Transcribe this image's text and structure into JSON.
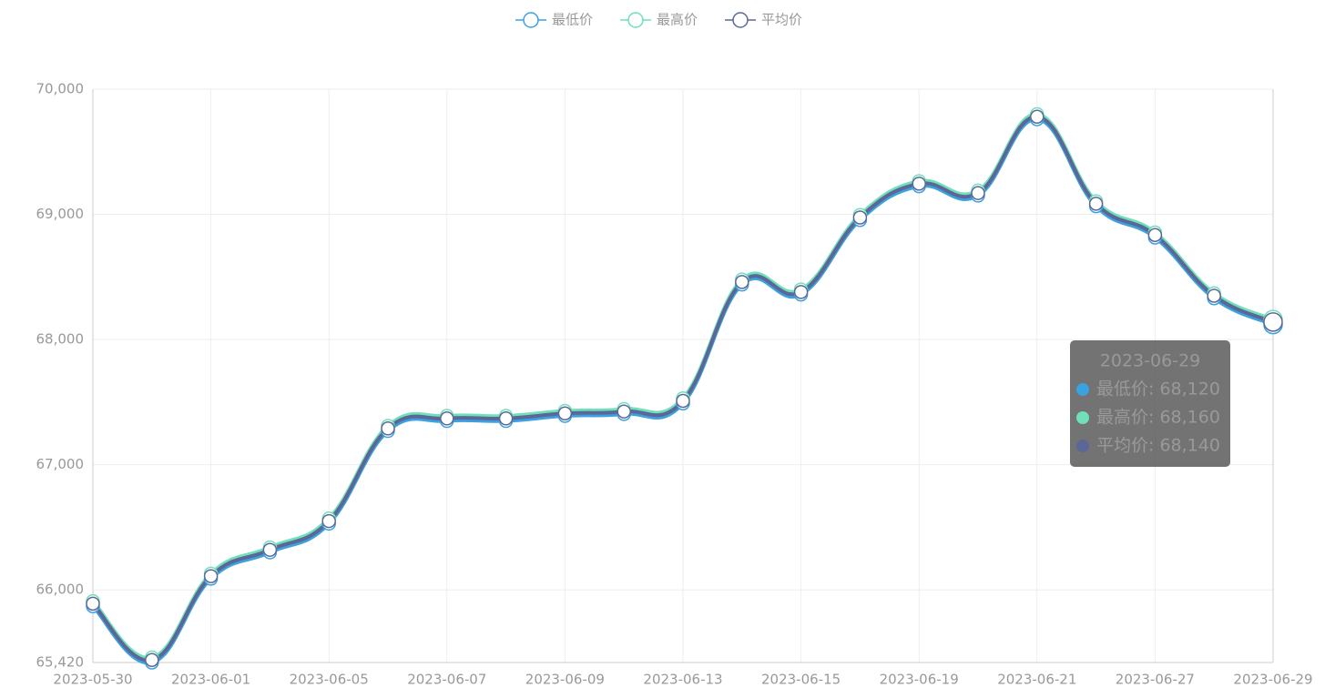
{
  "chart_data": {
    "type": "line",
    "smooth": true,
    "grid": true,
    "categories": [
      "2023-05-30",
      null,
      "2023-06-01",
      null,
      "2023-06-05",
      null,
      "2023-06-07",
      null,
      "2023-06-09",
      null,
      "2023-06-13",
      null,
      "2023-06-15",
      null,
      "2023-06-19",
      null,
      "2023-06-21",
      null,
      "2023-06-27",
      null,
      "2023-06-29"
    ],
    "series": [
      {
        "name": "最低价",
        "color": "#3ba1e0",
        "values": [
          65870,
          65420,
          66090,
          66300,
          66530,
          67270,
          67350,
          67350,
          67390,
          67405,
          67490,
          68440,
          68360,
          68955,
          69225,
          69150,
          69760,
          69065,
          68815,
          68330,
          68120
        ]
      },
      {
        "name": "最高价",
        "color": "#6fe0b9",
        "values": [
          65910,
          65460,
          66130,
          66340,
          66570,
          67310,
          67390,
          67390,
          67430,
          67445,
          67530,
          68480,
          68400,
          68995,
          69265,
          69190,
          69800,
          69105,
          68855,
          68370,
          68160
        ]
      },
      {
        "name": "平均价",
        "color": "#5b6796",
        "values": [
          65890,
          65440,
          66110,
          66320,
          66550,
          67290,
          67370,
          67370,
          67410,
          67425,
          67510,
          68460,
          68380,
          68975,
          69245,
          69170,
          69780,
          69085,
          68835,
          68350,
          68140
        ]
      }
    ],
    "ylim": [
      65420,
      70000
    ],
    "yticks": [
      {
        "value": 65420,
        "label": "65,420"
      },
      {
        "value": 66000,
        "label": "66,000"
      },
      {
        "value": 67000,
        "label": "67,000"
      },
      {
        "value": 68000,
        "label": "68,000"
      },
      {
        "value": 69000,
        "label": "69,000"
      },
      {
        "value": 70000,
        "label": "70,000"
      }
    ],
    "tooltip": {
      "title": "2023-06-29",
      "lines": [
        "最低价: 68,120",
        "最高价: 68,160",
        "平均价: 68,140"
      ]
    }
  }
}
